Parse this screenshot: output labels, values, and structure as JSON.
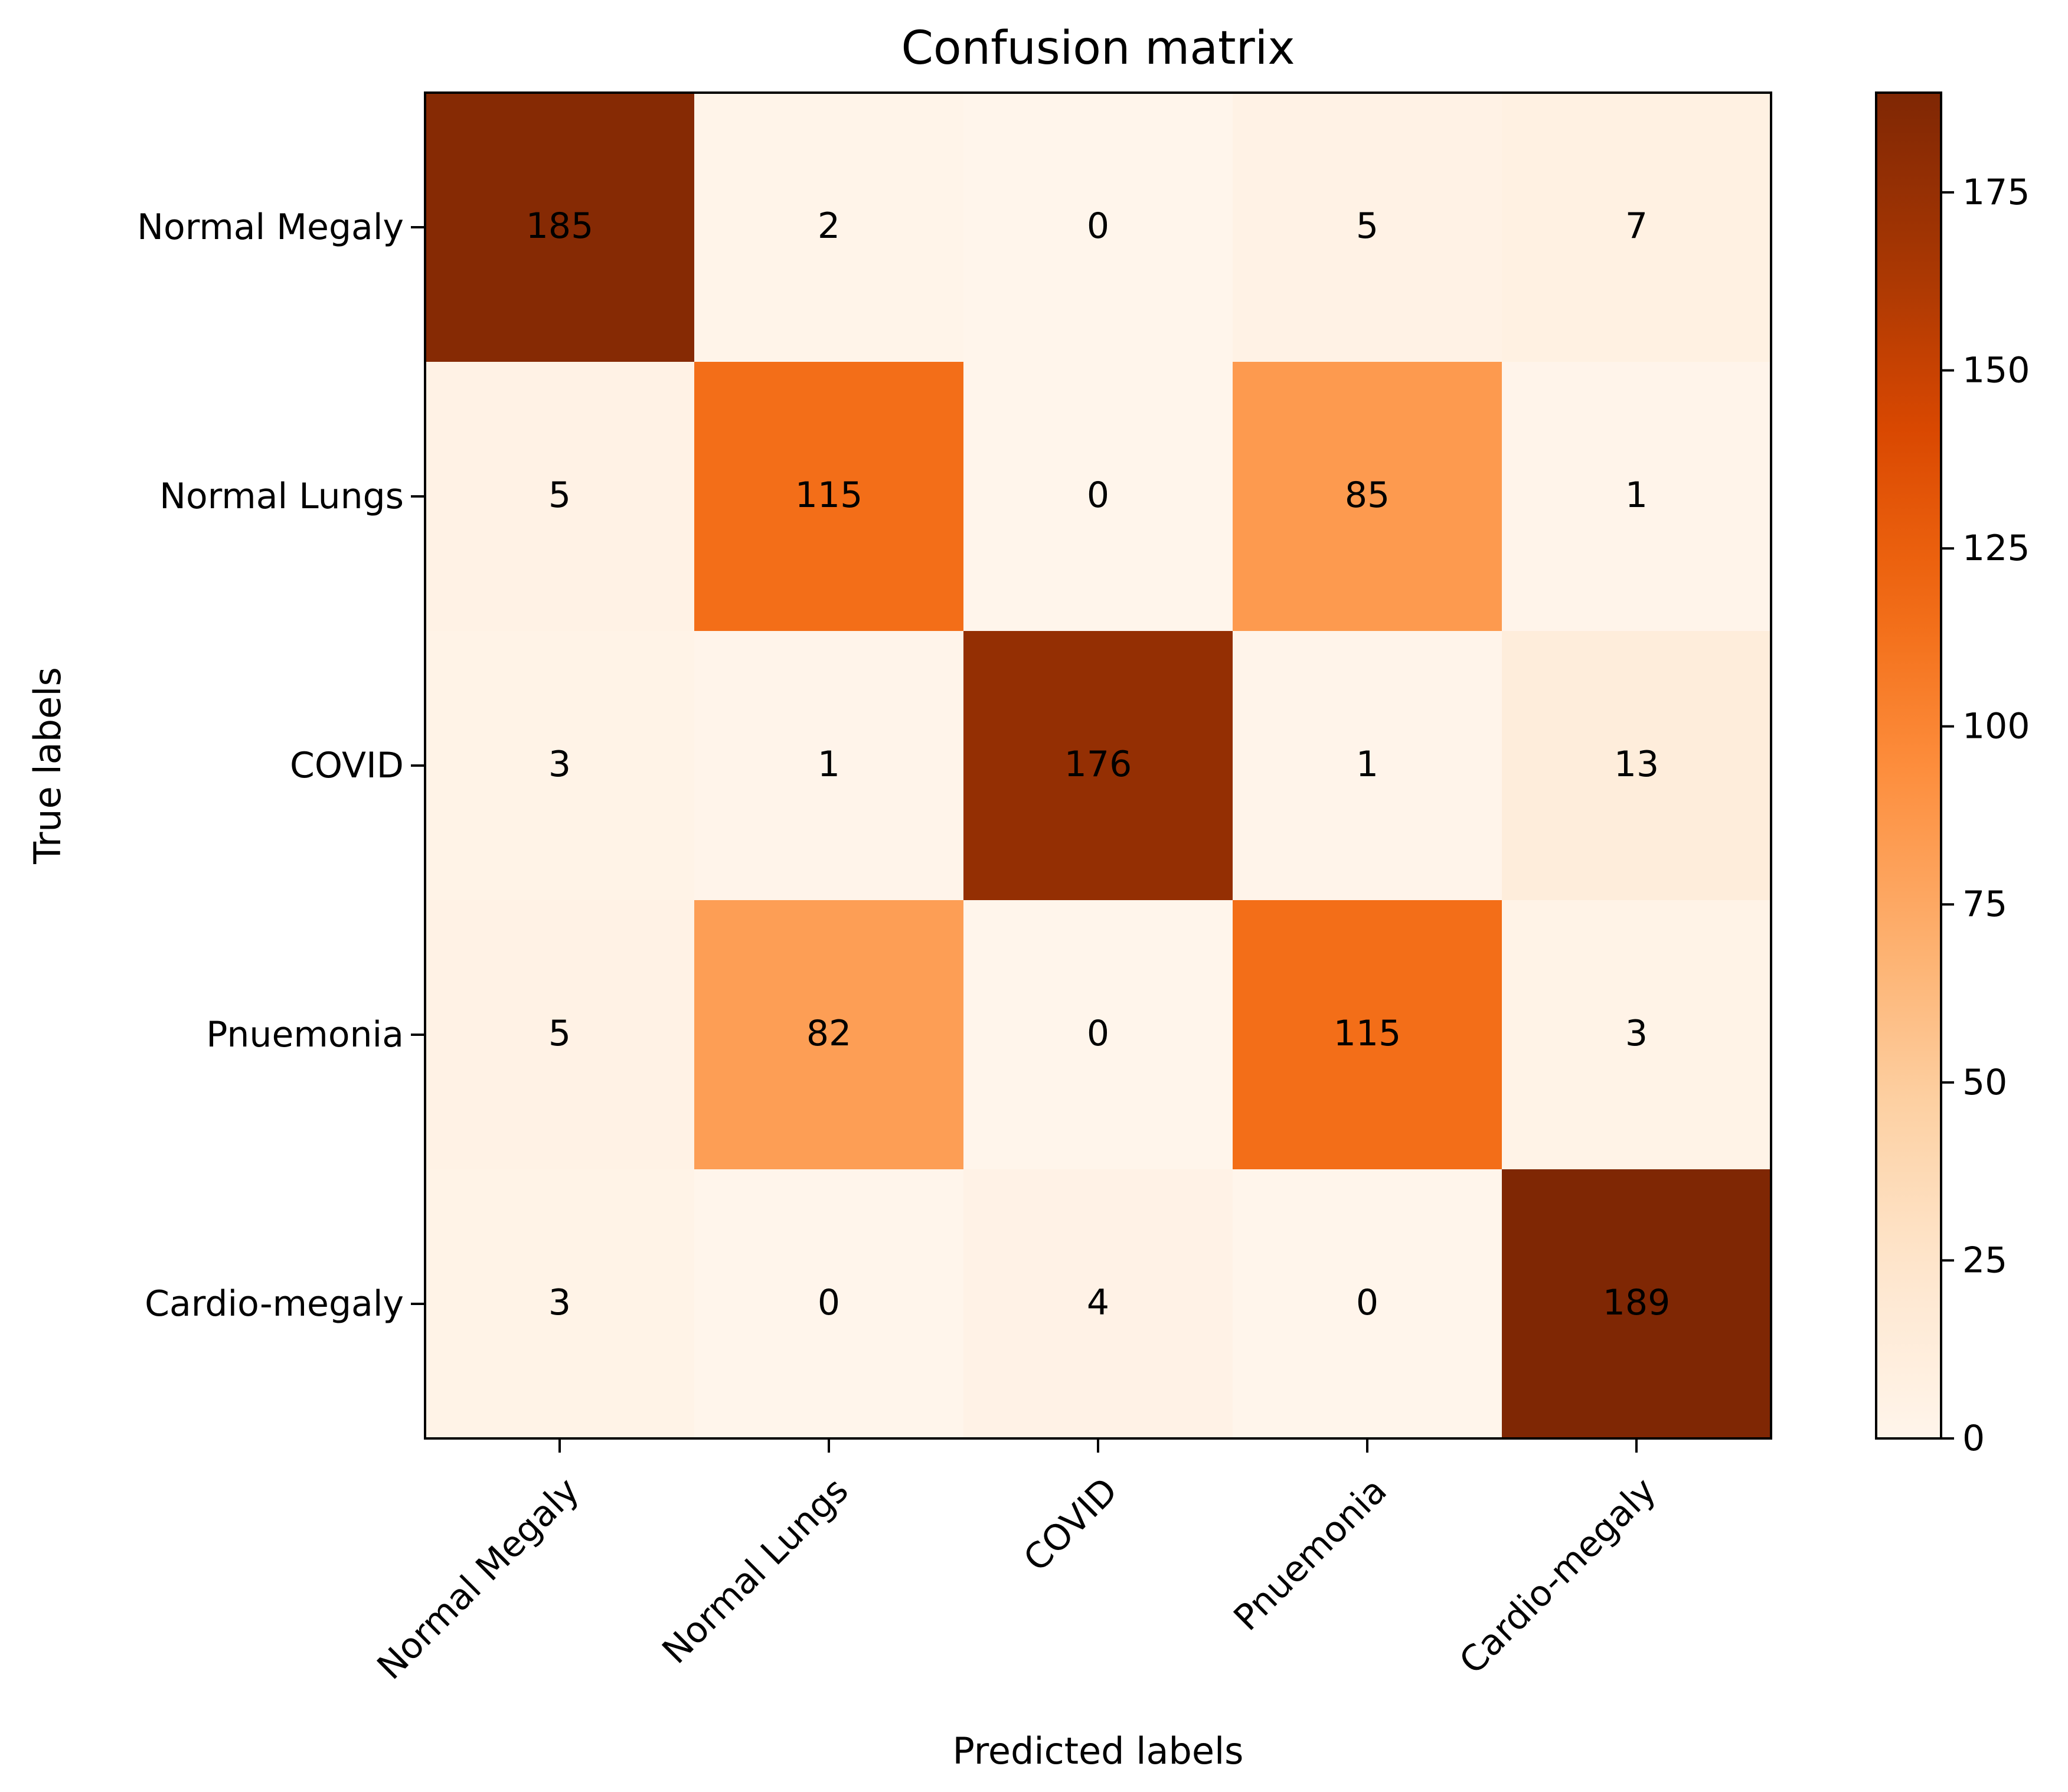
{
  "chart_data": {
    "type": "heatmap",
    "title": "Confusion matrix",
    "xlabel": "Predicted labels",
    "ylabel": "True labels",
    "x_categories": [
      "Normal Megaly",
      "Normal Lungs",
      "COVID",
      "Pnuemonia",
      "Cardio-megaly"
    ],
    "y_categories": [
      "Normal Megaly",
      "Normal Lungs",
      "COVID",
      "Pnuemonia",
      "Cardio-megaly"
    ],
    "matrix": [
      [
        185,
        2,
        0,
        5,
        7
      ],
      [
        5,
        115,
        0,
        85,
        1
      ],
      [
        3,
        1,
        176,
        1,
        13
      ],
      [
        5,
        82,
        0,
        115,
        3
      ],
      [
        3,
        0,
        4,
        0,
        189
      ]
    ],
    "colormap": "Oranges",
    "colorbar": {
      "range": [
        0,
        189
      ],
      "ticks": [
        0,
        25,
        50,
        75,
        100,
        125,
        150,
        175
      ]
    },
    "grid": false,
    "legend": "none"
  }
}
